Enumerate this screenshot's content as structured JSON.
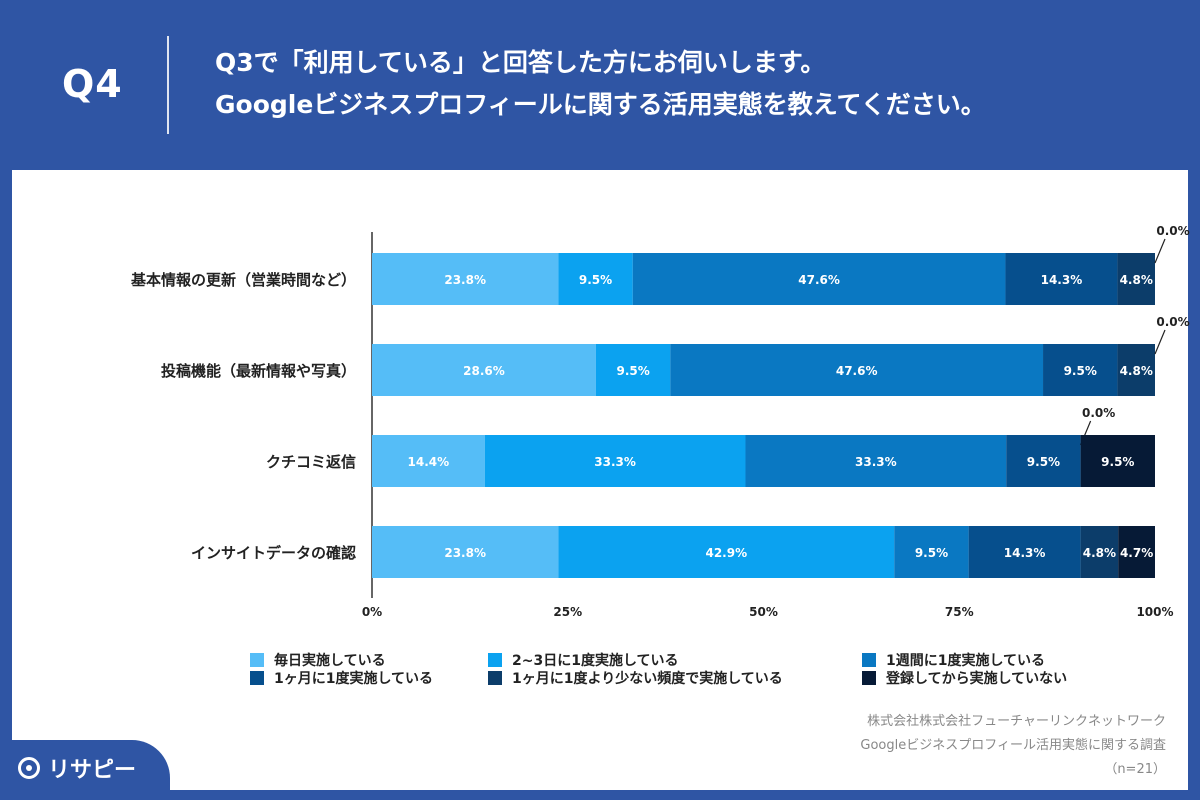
{
  "header": {
    "q_label": "Q4",
    "title_line1": "Q3で「利用している」と回答した方にお伺いします。",
    "title_line2": "Googleビジネスプロフィールに関する活用実態を教えてください。"
  },
  "colors": {
    "background": "#2f55a4",
    "panel": "#ffffff"
  },
  "chart_data": {
    "type": "bar",
    "orientation": "horizontal",
    "stacked": true,
    "categories": [
      "基本情報の更新（営業時間など）",
      "投稿機能（最新情報や写真）",
      "クチコミ返信",
      "インサイトデータの確認"
    ],
    "series": [
      {
        "name": "毎日実施している",
        "color": "#55bdf7",
        "values": [
          23.8,
          28.6,
          14.4,
          23.8
        ]
      },
      {
        "name": "2~3日に1度実施している",
        "color": "#0ba2f0",
        "values": [
          9.5,
          9.5,
          33.3,
          42.9
        ]
      },
      {
        "name": "1週間に1度実施している",
        "color": "#0a78c2",
        "values": [
          47.6,
          47.6,
          33.3,
          9.5
        ]
      },
      {
        "name": "1ヶ月に1度実施している",
        "color": "#064f8d",
        "values": [
          14.3,
          9.5,
          9.5,
          14.3
        ]
      },
      {
        "name": "1ヶ月に1度より少ない頻度で実施している",
        "color": "#0c3d6a",
        "values": [
          4.8,
          4.8,
          0.0,
          4.8
        ]
      },
      {
        "name": "登録してから実施していない",
        "color": "#061a36",
        "values": [
          0.0,
          0.0,
          9.5,
          4.7
        ]
      }
    ],
    "value_labels": [
      [
        "23.8%",
        "9.5%",
        "47.6%",
        "14.3%",
        "4.8%",
        "0.0%"
      ],
      [
        "28.6%",
        "9.5%",
        "47.6%",
        "9.5%",
        "4.8%",
        "0.0%"
      ],
      [
        "14.4%",
        "33.3%",
        "33.3%",
        "9.5%",
        "0.0%",
        "9.5%"
      ],
      [
        "23.8%",
        "42.9%",
        "9.5%",
        "14.3%",
        "4.8%",
        "4.7%"
      ]
    ],
    "x_ticks": [
      "0%",
      "25%",
      "50%",
      "75%",
      "100%"
    ],
    "x_tick_values": [
      0,
      25,
      50,
      75,
      100
    ],
    "xlim": [
      0,
      100
    ],
    "grid": false,
    "legend_position": "bottom"
  },
  "source": {
    "line1": "株式会社株式会社フューチャーリンクネットワーク",
    "line2": "Googleビジネスプロフィール活用実態に関する調査",
    "line3": "（n=21）"
  },
  "logo": {
    "text": "リサピー"
  }
}
